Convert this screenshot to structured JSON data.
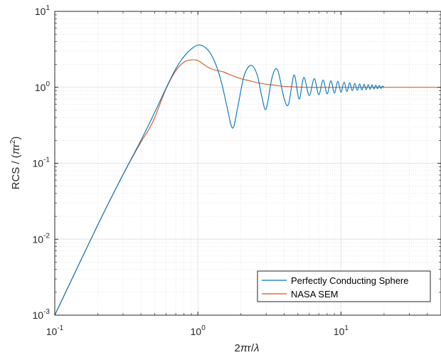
{
  "chart_data": {
    "type": "line",
    "xscale": "log",
    "yscale": "log",
    "xlim": [
      0.1,
      50
    ],
    "ylim": [
      0.001,
      10
    ],
    "grid": true,
    "minor_grid": true,
    "legend_position": "bottom-right",
    "xlabel_parts": {
      "base": "2",
      "pi": "π",
      "mid": "r/",
      "lambda": "λ"
    },
    "ylabel_parts": {
      "base": "RCS / (",
      "pi": "π",
      "r": "r",
      "exp": "2",
      "close": ")"
    },
    "x_ticks": [
      {
        "base": "10",
        "exp": "-1",
        "value": 0.1
      },
      {
        "base": "10",
        "exp": "0",
        "value": 1
      },
      {
        "base": "10",
        "exp": "1",
        "value": 10
      }
    ],
    "y_ticks": [
      {
        "base": "10",
        "exp": "-3",
        "value": 0.001
      },
      {
        "base": "10",
        "exp": "-2",
        "value": 0.01
      },
      {
        "base": "10",
        "exp": "-1",
        "value": 0.1
      },
      {
        "base": "10",
        "exp": "0",
        "value": 1
      },
      {
        "base": "10",
        "exp": "1",
        "value": 10
      }
    ],
    "series": [
      {
        "name": "Perfectly Conducting Sphere",
        "color": "#0072BD",
        "x": [
          0.1,
          0.2,
          0.3,
          0.4,
          0.5,
          0.6,
          0.7,
          0.8,
          0.9,
          1.0,
          1.1,
          1.2,
          1.3,
          1.4,
          1.5,
          1.6,
          1.75,
          1.9,
          2.1,
          2.35,
          2.6,
          2.8,
          3.0,
          3.3,
          3.6,
          4.0,
          4.3,
          4.7,
          5.1,
          5.5,
          6.0,
          6.5,
          7.0,
          7.5,
          8.0,
          8.5,
          9.0,
          9.5,
          10.0,
          10.5,
          11.0,
          11.5,
          12.0,
          12.5,
          13.0,
          13.5,
          14.0,
          14.5,
          15.0,
          15.5,
          16.0,
          16.5,
          17.0,
          17.5,
          18.0,
          18.5,
          19.0,
          19.5,
          20.0
        ],
        "y": [
          0.001,
          0.0155,
          0.071,
          0.2,
          0.47,
          0.98,
          1.75,
          2.55,
          3.2,
          3.6,
          3.45,
          2.95,
          2.25,
          1.55,
          0.95,
          0.55,
          0.29,
          0.55,
          1.4,
          1.95,
          1.45,
          0.75,
          0.52,
          1.35,
          1.7,
          0.72,
          0.6,
          1.45,
          0.7,
          1.35,
          0.78,
          1.3,
          0.8,
          1.25,
          0.82,
          1.22,
          0.84,
          1.2,
          0.86,
          1.17,
          0.88,
          1.15,
          0.9,
          1.13,
          0.91,
          1.11,
          0.92,
          1.1,
          0.93,
          1.09,
          0.94,
          1.08,
          0.95,
          1.07,
          0.96,
          1.06,
          0.97,
          1.04,
          1.0
        ]
      },
      {
        "name": "NASA SEM",
        "color": "#D95319",
        "x": [
          0.1,
          0.2,
          0.3,
          0.4,
          0.45,
          0.5,
          0.6,
          0.7,
          0.8,
          0.9,
          1.0,
          1.1,
          1.2,
          1.3,
          1.5,
          1.7,
          2.0,
          2.3,
          2.6,
          3.0,
          3.5,
          4.0,
          5.0,
          6.0,
          8.0,
          10.0,
          15.0,
          20.0,
          30.0,
          50.0
        ],
        "y": [
          0.001,
          0.0155,
          0.071,
          0.19,
          0.27,
          0.4,
          0.96,
          1.65,
          2.15,
          2.3,
          2.25,
          2.0,
          1.8,
          1.7,
          1.6,
          1.45,
          1.3,
          1.22,
          1.15,
          1.1,
          1.06,
          1.03,
          1.01,
          1.0,
          1.0,
          1.0,
          1.0,
          1.0,
          1.0,
          1.0
        ]
      }
    ]
  }
}
